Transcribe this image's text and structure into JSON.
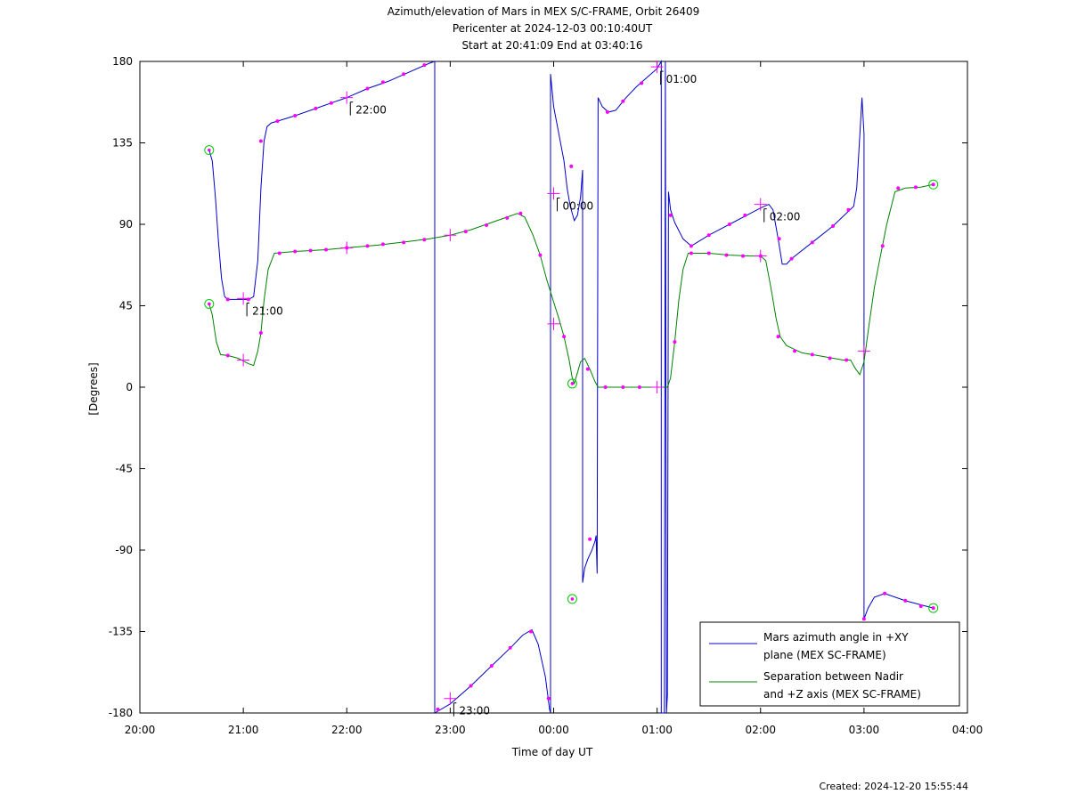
{
  "chart_data": {
    "type": "line",
    "title": "Azimuth/elevation of Mars in MEX S/C-FRAME,  Orbit 26409",
    "subtitle_lines": [
      "Pericenter at 2024-12-03 00:10:40UT",
      "Start at 20:41:09 End at 03:40:16"
    ],
    "xlabel": "Time of day UT",
    "ylabel": "[Degrees]",
    "x_unit": "hours since 20:00",
    "xlim": [
      0,
      8
    ],
    "ylim": [
      -180,
      180
    ],
    "x_ticks": [
      {
        "v": 0,
        "label": "20:00"
      },
      {
        "v": 1,
        "label": "21:00"
      },
      {
        "v": 2,
        "label": "22:00"
      },
      {
        "v": 3,
        "label": "23:00"
      },
      {
        "v": 4,
        "label": "00:00"
      },
      {
        "v": 5,
        "label": "01:00"
      },
      {
        "v": 6,
        "label": "02:00"
      },
      {
        "v": 7,
        "label": "03:00"
      },
      {
        "v": 8,
        "label": "04:00"
      }
    ],
    "y_ticks": [
      {
        "v": 180,
        "label": "180"
      },
      {
        "v": 135,
        "label": "135"
      },
      {
        "v": 90,
        "label": "90"
      },
      {
        "v": 45,
        "label": "45"
      },
      {
        "v": 0,
        "label": "0"
      },
      {
        "v": -45,
        "label": "-45"
      },
      {
        "v": -90,
        "label": "-90"
      },
      {
        "v": -135,
        "label": "-135"
      },
      {
        "v": -180,
        "label": "-180"
      }
    ],
    "legend_position": "bottom-right",
    "series": [
      {
        "name": "Mars azimuth angle in +XY plane (MEX SC-FRAME)",
        "legend_lines": [
          "Mars azimuth angle in +XY",
          "plane (MEX SC-FRAME)"
        ],
        "color": "#0000cc",
        "segments": [
          [
            [
              0.67,
              131
            ],
            [
              0.7,
              125
            ],
            [
              0.73,
              105
            ],
            [
              0.76,
              80
            ],
            [
              0.79,
              60
            ],
            [
              0.82,
              50
            ],
            [
              0.85,
              48.5
            ],
            [
              0.95,
              48.5
            ],
            [
              1.05,
              48.5
            ],
            [
              1.1,
              50
            ],
            [
              1.14,
              70
            ],
            [
              1.17,
              110
            ],
            [
              1.2,
              136
            ],
            [
              1.23,
              144
            ],
            [
              1.27,
              146
            ],
            [
              1.33,
              147
            ],
            [
              1.5,
              150
            ],
            [
              1.7,
              154
            ],
            [
              1.9,
              158
            ],
            [
              2.0,
              160
            ],
            [
              2.2,
              165
            ],
            [
              2.4,
              169
            ],
            [
              2.6,
              174
            ],
            [
              2.8,
              179
            ],
            [
              2.85,
              180
            ]
          ],
          [
            [
              2.85,
              180
            ],
            [
              2.85,
              -180
            ]
          ],
          [
            [
              2.85,
              -180
            ],
            [
              3.0,
              -175
            ],
            [
              3.2,
              -165
            ],
            [
              3.4,
              -154
            ],
            [
              3.6,
              -143
            ],
            [
              3.7,
              -137
            ],
            [
              3.79,
              -134
            ],
            [
              3.85,
              -142
            ],
            [
              3.92,
              -160
            ],
            [
              3.96,
              -178
            ],
            [
              3.97,
              -180
            ]
          ],
          [
            [
              3.97,
              -180
            ],
            [
              3.97,
              173
            ]
          ],
          [
            [
              3.97,
              173
            ],
            [
              4.0,
              155
            ],
            [
              4.05,
              140
            ],
            [
              4.1,
              125
            ],
            [
              4.13,
              110
            ],
            [
              4.16,
              100
            ],
            [
              4.2,
              92
            ],
            [
              4.23,
              95
            ],
            [
              4.26,
              105
            ],
            [
              4.28,
              120
            ],
            [
              4.28,
              -108
            ],
            [
              4.3,
              -100
            ],
            [
              4.33,
              -95
            ],
            [
              4.37,
              -90
            ],
            [
              4.4,
              -85
            ],
            [
              4.41,
              -82
            ],
            [
              4.42,
              -103
            ],
            [
              4.43,
              160
            ],
            [
              4.47,
              155
            ],
            [
              4.53,
              152
            ],
            [
              4.6,
              153
            ],
            [
              4.7,
              160
            ],
            [
              4.8,
              166
            ],
            [
              4.9,
              171
            ],
            [
              5.0,
              176
            ],
            [
              5.02,
              178
            ],
            [
              5.04,
              180
            ],
            [
              5.04,
              -180
            ],
            [
              5.07,
              -180
            ],
            [
              5.08,
              180
            ],
            [
              5.09,
              -180
            ],
            [
              5.1,
              -170
            ],
            [
              5.11,
              108
            ],
            [
              5.13,
              98
            ],
            [
              5.17,
              91
            ],
            [
              5.25,
              82
            ],
            [
              5.33,
              78
            ],
            [
              5.5,
              84
            ],
            [
              5.7,
              90
            ],
            [
              5.9,
              96
            ],
            [
              6.0,
              99
            ],
            [
              6.08,
              101
            ],
            [
              6.12,
              98
            ],
            [
              6.17,
              82
            ],
            [
              6.21,
              68
            ],
            [
              6.25,
              68
            ],
            [
              6.3,
              71
            ],
            [
              6.5,
              80
            ],
            [
              6.7,
              89
            ],
            [
              6.9,
              100
            ],
            [
              6.93,
              110
            ],
            [
              6.95,
              130
            ],
            [
              6.98,
              160
            ],
            [
              7.0,
              140
            ],
            [
              7.0,
              -128
            ],
            [
              7.04,
              -122
            ],
            [
              7.1,
              -116
            ],
            [
              7.2,
              -114
            ],
            [
              7.4,
              -118
            ],
            [
              7.6,
              -121
            ],
            [
              7.67,
              -122
            ]
          ]
        ]
      },
      {
        "name": "Separation between Nadir and +Z axis (MEX SC-FRAME)",
        "legend_lines": [
          "Separation between Nadir",
          "and +Z axis (MEX SC-FRAME)"
        ],
        "color": "#008000",
        "segments": [
          [
            [
              0.67,
              46
            ],
            [
              0.7,
              40
            ],
            [
              0.74,
              25
            ],
            [
              0.78,
              18
            ],
            [
              0.85,
              17.5
            ],
            [
              0.95,
              16
            ],
            [
              1.05,
              13
            ],
            [
              1.1,
              12
            ],
            [
              1.14,
              20
            ],
            [
              1.17,
              30
            ],
            [
              1.2,
              48
            ],
            [
              1.24,
              65
            ],
            [
              1.3,
              74
            ],
            [
              1.5,
              75
            ],
            [
              1.8,
              76
            ],
            [
              2.0,
              77
            ],
            [
              2.3,
              78.5
            ],
            [
              2.6,
              80.5
            ],
            [
              2.8,
              82
            ],
            [
              3.0,
              84
            ],
            [
              3.2,
              87
            ],
            [
              3.4,
              91
            ],
            [
              3.55,
              94
            ],
            [
              3.65,
              96
            ],
            [
              3.72,
              94
            ],
            [
              3.8,
              84
            ],
            [
              3.87,
              73
            ],
            [
              3.93,
              60
            ],
            [
              4.0,
              47
            ],
            [
              4.05,
              38
            ],
            [
              4.1,
              28
            ],
            [
              4.15,
              15
            ],
            [
              4.18,
              5
            ],
            [
              4.2,
              2
            ],
            [
              4.23,
              8
            ],
            [
              4.26,
              14
            ],
            [
              4.3,
              16
            ],
            [
              4.35,
              10
            ],
            [
              4.4,
              3
            ],
            [
              4.43,
              0
            ],
            [
              4.6,
              0
            ],
            [
              4.8,
              0
            ],
            [
              5.0,
              0
            ],
            [
              5.1,
              0
            ],
            [
              5.13,
              5
            ],
            [
              5.17,
              25
            ],
            [
              5.21,
              48
            ],
            [
              5.25,
              65
            ],
            [
              5.3,
              74
            ],
            [
              5.5,
              74
            ],
            [
              5.7,
              73
            ],
            [
              5.9,
              72.5
            ],
            [
              6.0,
              72.5
            ],
            [
              6.05,
              70
            ],
            [
              6.1,
              55
            ],
            [
              6.15,
              38
            ],
            [
              6.19,
              28
            ],
            [
              6.25,
              23
            ],
            [
              6.4,
              19
            ],
            [
              6.6,
              17
            ],
            [
              6.8,
              15
            ],
            [
              6.87,
              15
            ],
            [
              6.92,
              10
            ],
            [
              6.96,
              7
            ],
            [
              7.0,
              14
            ],
            [
              7.05,
              35
            ],
            [
              7.1,
              55
            ],
            [
              7.15,
              70
            ],
            [
              7.22,
              90
            ],
            [
              7.3,
              108
            ],
            [
              7.4,
              110
            ],
            [
              7.55,
              110.5
            ],
            [
              7.67,
              112
            ]
          ]
        ]
      }
    ],
    "time_labels": [
      {
        "label": "21:00",
        "x": 1.0,
        "y": 49
      },
      {
        "label": "22:00",
        "x": 2.0,
        "y": 160
      },
      {
        "label": "23:00",
        "x": 3.0,
        "y": -172
      },
      {
        "label": "00:00",
        "x": 4.0,
        "y": 107
      },
      {
        "label": "01:00",
        "x": 5.0,
        "y": 177
      },
      {
        "label": "02:00",
        "x": 6.0,
        "y": 101
      }
    ],
    "crosses": [
      [
        1.0,
        49
      ],
      [
        2.0,
        160
      ],
      [
        3.0,
        -172
      ],
      [
        4.0,
        107
      ],
      [
        5.0,
        177
      ],
      [
        6.0,
        101
      ],
      [
        1.0,
        15
      ],
      [
        2.0,
        77
      ],
      [
        3.0,
        84
      ],
      [
        4.0,
        35
      ],
      [
        5.0,
        0
      ],
      [
        6.0,
        72.5
      ],
      [
        7.0,
        20
      ]
    ],
    "dots": [
      [
        0.85,
        48.5
      ],
      [
        1.05,
        48.5
      ],
      [
        1.17,
        136
      ],
      [
        1.33,
        147
      ],
      [
        1.5,
        150
      ],
      [
        1.7,
        154
      ],
      [
        1.85,
        157
      ],
      [
        2.2,
        165
      ],
      [
        2.35,
        168.5
      ],
      [
        2.55,
        173
      ],
      [
        2.75,
        178
      ],
      [
        2.88,
        -178
      ],
      [
        3.2,
        -165
      ],
      [
        3.4,
        -154
      ],
      [
        3.58,
        -144
      ],
      [
        3.78,
        -135
      ],
      [
        3.95,
        -172
      ],
      [
        4.17,
        122
      ],
      [
        4.35,
        -84
      ],
      [
        4.52,
        152
      ],
      [
        4.67,
        158
      ],
      [
        4.85,
        168
      ],
      [
        5.13,
        95
      ],
      [
        5.33,
        78
      ],
      [
        5.5,
        84
      ],
      [
        5.7,
        90
      ],
      [
        5.85,
        95
      ],
      [
        6.18,
        82
      ],
      [
        6.3,
        71
      ],
      [
        6.5,
        80
      ],
      [
        6.7,
        89
      ],
      [
        6.85,
        98
      ],
      [
        7.0,
        -128
      ],
      [
        7.2,
        -114
      ],
      [
        7.4,
        -118
      ],
      [
        7.55,
        -121
      ],
      [
        7.67,
        -122
      ],
      [
        0.85,
        17.5
      ],
      [
        1.17,
        30
      ],
      [
        1.35,
        74
      ],
      [
        1.5,
        75
      ],
      [
        1.65,
        75.5
      ],
      [
        1.8,
        76
      ],
      [
        2.0,
        77
      ],
      [
        2.2,
        78
      ],
      [
        2.35,
        79
      ],
      [
        2.55,
        80
      ],
      [
        2.75,
        81.5
      ],
      [
        3.15,
        86
      ],
      [
        3.35,
        89.5
      ],
      [
        3.55,
        93.5
      ],
      [
        3.68,
        96
      ],
      [
        3.87,
        73
      ],
      [
        4.1,
        28
      ],
      [
        4.33,
        10
      ],
      [
        4.5,
        0
      ],
      [
        4.67,
        0
      ],
      [
        4.83,
        0
      ],
      [
        5.17,
        25
      ],
      [
        5.33,
        74
      ],
      [
        5.5,
        74
      ],
      [
        5.67,
        73
      ],
      [
        5.83,
        72.5
      ],
      [
        6.0,
        72.5
      ],
      [
        6.17,
        28
      ],
      [
        6.33,
        20
      ],
      [
        6.5,
        18
      ],
      [
        6.67,
        16
      ],
      [
        6.83,
        15
      ],
      [
        7.18,
        78
      ],
      [
        7.33,
        110
      ],
      [
        7.5,
        110.5
      ],
      [
        7.67,
        112
      ]
    ],
    "circles": [
      [
        0.67,
        131
      ],
      [
        0.67,
        46
      ],
      [
        4.18,
        2
      ],
      [
        4.18,
        -117
      ],
      [
        7.67,
        -122
      ],
      [
        7.67,
        112
      ]
    ]
  },
  "created": "Created: 2024-12-20 15:55:44"
}
